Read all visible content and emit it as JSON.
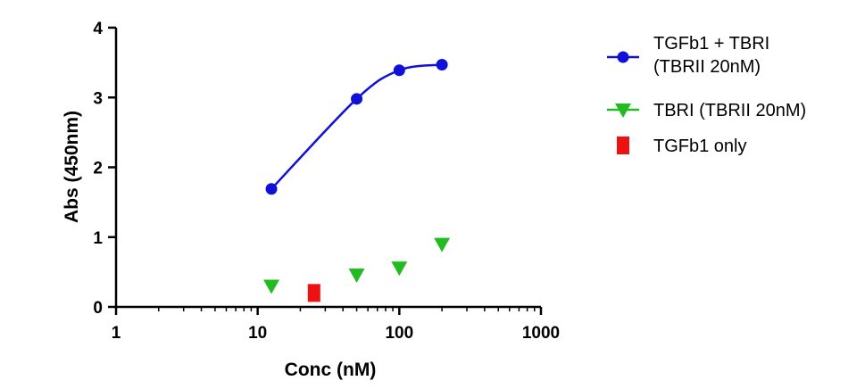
{
  "chart_data": {
    "type": "scatter",
    "xlabel": "Conc (nM)",
    "ylabel": "Abs (450nm)",
    "xscale": "log",
    "xlim": [
      1,
      1000
    ],
    "ylim": [
      0,
      4
    ],
    "xticks": [
      1,
      10,
      100,
      1000
    ],
    "xtick_labels": [
      "1",
      "10",
      "100",
      "1000"
    ],
    "yticks": [
      0,
      1,
      2,
      3,
      4
    ],
    "ytick_labels": [
      "0",
      "1",
      "2",
      "3",
      "4"
    ],
    "grid": false,
    "legend_position": "right",
    "series": [
      {
        "name_lines": [
          "TGFb1 + TBRI",
          "(TBRII 20nM)"
        ],
        "marker": "circle",
        "color": "#1010d8",
        "fit_curve": true,
        "x": [
          12.5,
          50,
          100,
          200
        ],
        "y": [
          1.69,
          2.98,
          3.39,
          3.47
        ]
      },
      {
        "name_lines": [
          "TBRI (TBRII 20nM)"
        ],
        "marker": "triangle-down",
        "color": "#22bb22",
        "fit_curve": false,
        "x": [
          12.5,
          50,
          100,
          200
        ],
        "y": [
          0.3,
          0.46,
          0.56,
          0.9
        ]
      },
      {
        "name_lines": [
          "TGFb1 only"
        ],
        "marker": "square",
        "color": "#ee1111",
        "fit_curve": false,
        "x": [
          25
        ],
        "y": [
          0.2
        ]
      }
    ]
  }
}
